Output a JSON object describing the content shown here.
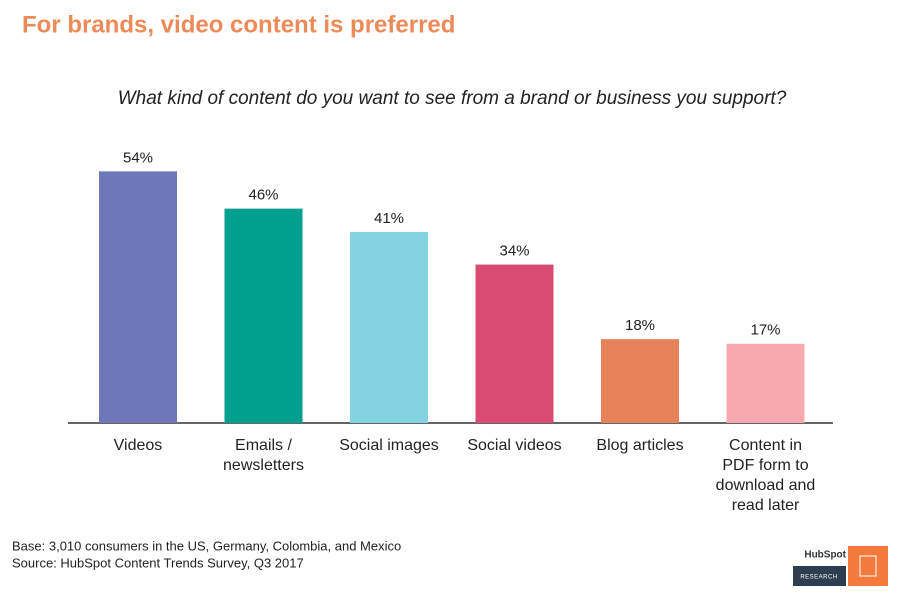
{
  "chart_data": {
    "type": "bar",
    "title": "For brands, video content is preferred",
    "subtitle": "What kind of content do you want to see from a brand or business you support?",
    "categories": [
      "Videos",
      "Emails / newsletters",
      "Social images",
      "Social videos",
      "Blog articles",
      "Content in PDF form to download and read later"
    ],
    "values": [
      54,
      46,
      41,
      34,
      18,
      17
    ],
    "value_labels": [
      "54%",
      "46%",
      "41%",
      "34%",
      "18%",
      "17%"
    ],
    "colors": [
      "#6e78b8",
      "#00a08f",
      "#84d3e0",
      "#d94b73",
      "#e5825a",
      "#f6a8ae"
    ],
    "notes": [
      "Base: 3,010 consumers in the US, Germany, Colombia, and Mexico",
      "Source: HubSpot Content Trends Survey, Q3 2017"
    ],
    "logo": {
      "brand": "HubSpot",
      "label": "RESEARCH"
    }
  }
}
